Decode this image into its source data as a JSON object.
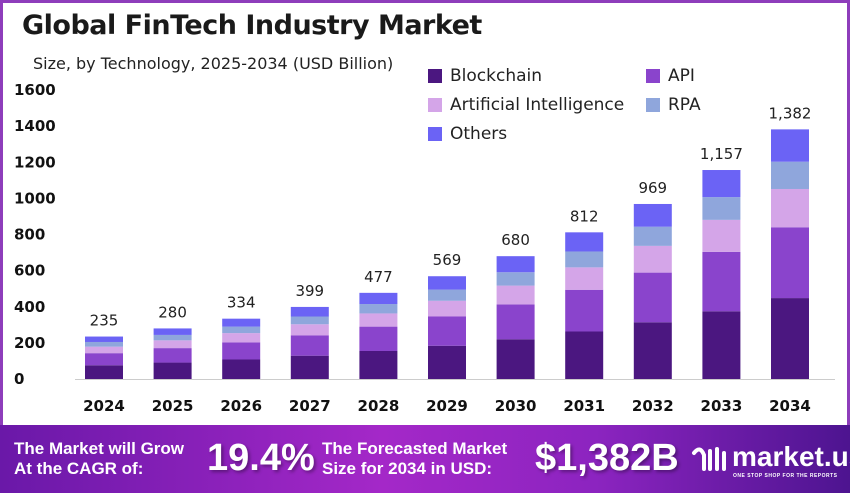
{
  "chart_data": {
    "type": "bar",
    "stacked": true,
    "title": "Global FinTech Industry Market",
    "subtitle": "Size, by Technology, 2025-2034 (USD Billion)",
    "xlabel": "",
    "ylabel": "",
    "ylim": [
      0,
      1600
    ],
    "yticks": [
      0,
      200,
      400,
      600,
      800,
      1000,
      1200,
      1400,
      1600
    ],
    "grid": false,
    "legend_position": "top-right",
    "categories": [
      "2024",
      "2025",
      "2026",
      "2027",
      "2028",
      "2029",
      "2030",
      "2031",
      "2032",
      "2033",
      "2034"
    ],
    "totals": [
      235,
      280,
      334,
      399,
      477,
      569,
      680,
      812,
      969,
      1157,
      1382
    ],
    "total_labels": [
      "235",
      "280",
      "334",
      "399",
      "477",
      "569",
      "680",
      "812",
      "969",
      "1,157",
      "1,382"
    ],
    "series": [
      {
        "name": "Blockchain",
        "color": "#4b1780",
        "values": [
          76,
          91,
          108,
          129,
          155,
          184,
          220,
          263,
          314,
          375,
          448
        ]
      },
      {
        "name": "API",
        "color": "#8a44cc",
        "values": [
          67,
          80,
          95,
          113,
          135,
          162,
          193,
          231,
          275,
          329,
          392
        ]
      },
      {
        "name": "Artificial Intelligence",
        "color": "#d4a5e8",
        "values": [
          36,
          43,
          51,
          61,
          73,
          87,
          104,
          124,
          148,
          177,
          212
        ]
      },
      {
        "name": "RPA",
        "color": "#8fa6dc",
        "values": [
          26,
          30,
          36,
          43,
          52,
          62,
          74,
          88,
          106,
          126,
          151
        ]
      },
      {
        "name": "Others",
        "color": "#6b63f5",
        "values": [
          30,
          36,
          44,
          53,
          62,
          74,
          89,
          106,
          126,
          150,
          179
        ]
      }
    ]
  },
  "footer": {
    "cagr_text_1": "The Market will Grow",
    "cagr_text_2": "At the CAGR of:",
    "cagr_value": "19.4%",
    "forecast_text_1": "The Forecasted Market",
    "forecast_text_2": "Size for 2034 in USD:",
    "forecast_value": "$1,382B",
    "logo": "market.us",
    "logo_tagline": "ONE STOP SHOP FOR THE REPORTS"
  }
}
